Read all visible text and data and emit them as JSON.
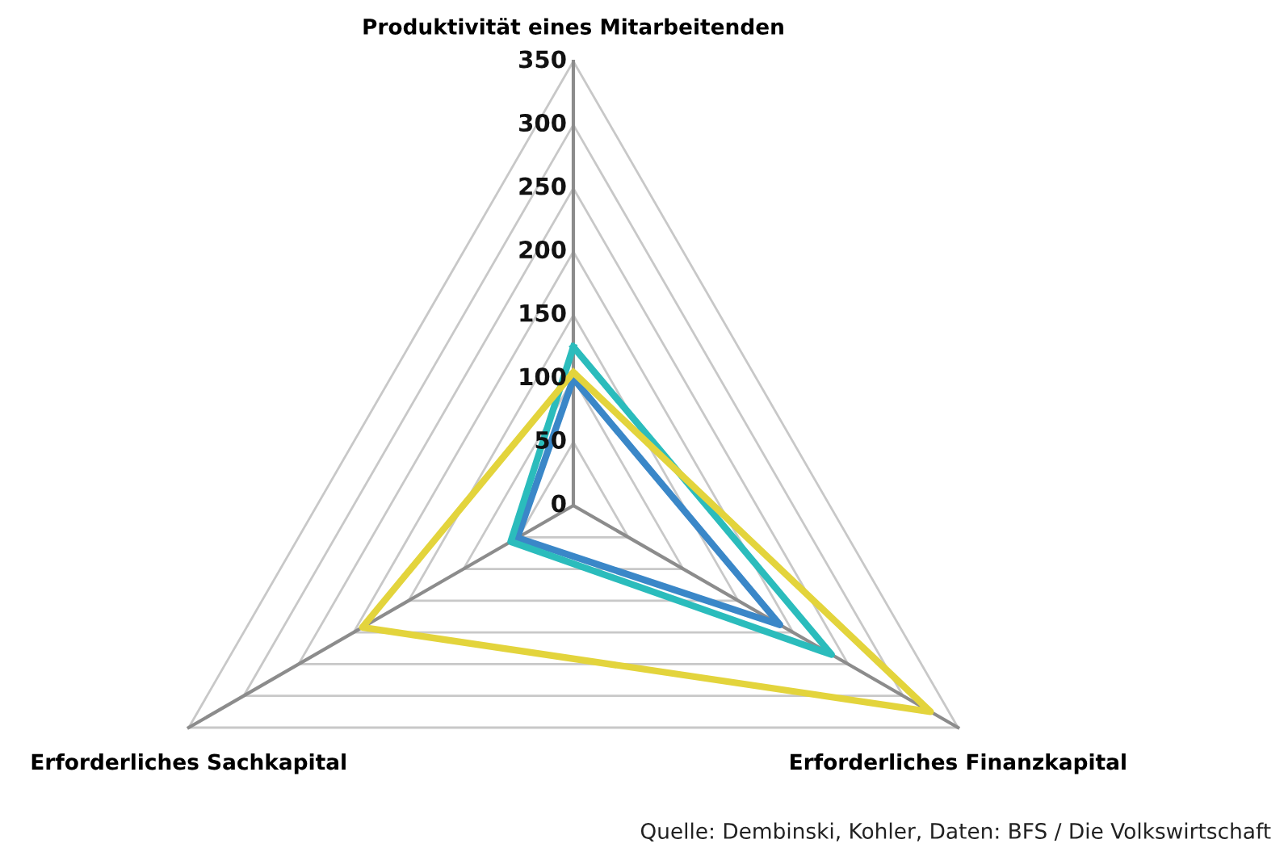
{
  "chart_data": {
    "type": "radar",
    "categories": [
      "Produktivität eines Mitarbeitenden",
      "Erforderliches Finanzkapital",
      "Erforderliches Sachkapital"
    ],
    "series": [
      {
        "color": "#3a87c8",
        "values": [
          100,
          188,
          51
        ]
      },
      {
        "color": "#2bbcbc",
        "values": [
          125,
          235,
          57
        ]
      },
      {
        "color": "#e3d43c",
        "values": [
          105,
          325,
          192
        ]
      }
    ],
    "ylim": [
      0,
      350
    ],
    "yticks": [
      0,
      50,
      100,
      150,
      200,
      250,
      300,
      350
    ],
    "grid": true,
    "legend": false,
    "annotations": [
      "Quelle: Dembinski, Kohler, Daten: BFS / Die Volkswirtschaft"
    ]
  }
}
